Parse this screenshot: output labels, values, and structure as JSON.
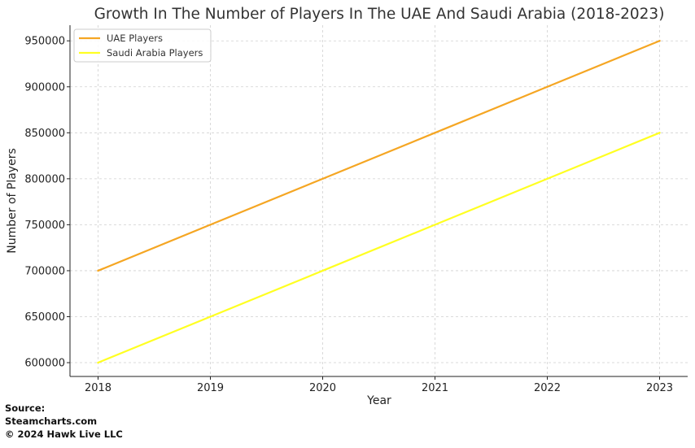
{
  "chart_data": {
    "type": "line",
    "title": "Growth In The Number of Players In The UAE And Saudi Arabia (2018-2023)",
    "xlabel": "Year",
    "ylabel": "Number of Players",
    "x": [
      2018,
      2019,
      2020,
      2021,
      2022,
      2023
    ],
    "x_tick_labels": [
      "2018",
      "2019",
      "2020",
      "2021",
      "2022",
      "2023"
    ],
    "y_ticks": [
      600000,
      650000,
      700000,
      750000,
      800000,
      850000,
      900000,
      950000
    ],
    "y_tick_labels": [
      "600000",
      "650000",
      "700000",
      "750000",
      "800000",
      "850000",
      "900000",
      "950000"
    ],
    "xlim": [
      2017.75,
      2023.25
    ],
    "ylim": [
      585000,
      967000
    ],
    "grid": true,
    "legend_position": "top-left",
    "series": [
      {
        "name": "UAE Players",
        "color": "#f5a623",
        "values": [
          700000,
          750000,
          800000,
          850000,
          900000,
          950000
        ]
      },
      {
        "name": "Saudi Arabia Players",
        "color": "#ffff22",
        "values": [
          600000,
          650000,
          700000,
          750000,
          800000,
          850000
        ]
      }
    ]
  },
  "source": {
    "line1": "Source:",
    "line2": "Steamcharts.com",
    "line3": "© 2024 Hawk Live LLC"
  }
}
